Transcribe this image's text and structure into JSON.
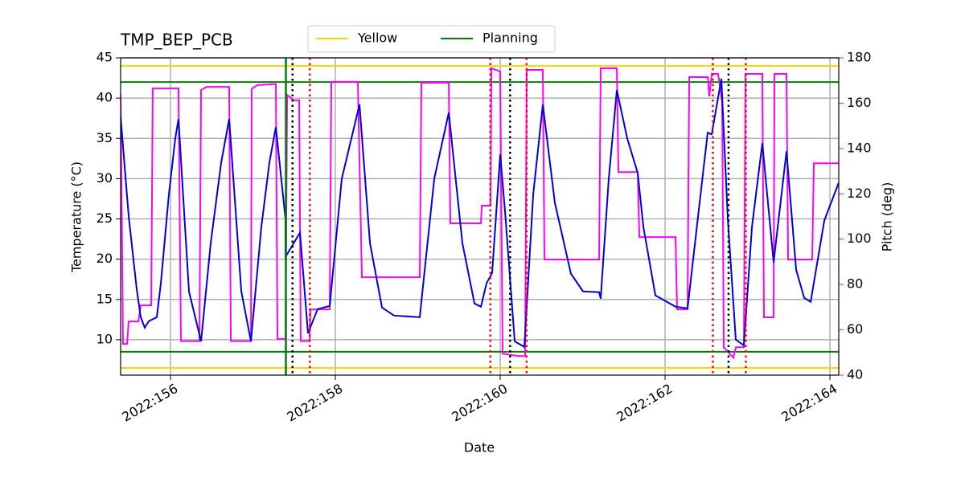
{
  "chart_data": {
    "type": "line",
    "title": "TMP_BEP_PCB",
    "xlabel": "Date",
    "ylabel": "Temperature (°C)",
    "y2label": "Pitch (deg)",
    "y2color": "magenta",
    "grid": true,
    "legend": "upper center",
    "xlim": [
      155.395,
      164.107
    ],
    "ylim": [
      5.6,
      45
    ],
    "y2lim": [
      40,
      180
    ],
    "xticks": [
      {
        "value": 156,
        "label": "2022:156"
      },
      {
        "value": 158,
        "label": "2022:158"
      },
      {
        "value": 160,
        "label": "2022:160"
      },
      {
        "value": 162,
        "label": "2022:162"
      },
      {
        "value": 164,
        "label": "2022:164"
      }
    ],
    "yticks": [
      10,
      15,
      20,
      25,
      30,
      35,
      40,
      45
    ],
    "y2ticks": [
      40,
      60,
      80,
      100,
      120,
      140,
      160,
      180
    ],
    "series": [
      {
        "color": "#0000dd",
        "x": [
          155.395,
          155.493,
          155.59,
          155.639,
          155.688,
          155.736,
          155.834,
          155.883,
          155.98,
          156.058,
          156.097,
          156.224,
          156.371,
          156.488,
          156.615,
          156.712,
          156.859,
          156.976,
          157.102,
          157.2,
          157.278,
          157.395,
          157.396,
          157.571,
          157.668,
          157.785,
          157.932,
          158.078,
          158.293,
          158.42,
          158.566,
          158.712,
          159.024,
          159.2,
          159.376,
          159.541,
          159.688,
          159.766,
          159.834,
          159.902,
          160.0,
          160.058,
          160.176,
          160.293,
          160.4,
          160.517,
          160.663,
          160.858,
          161.005,
          161.2,
          161.219,
          161.317,
          161.415,
          161.541,
          161.668,
          161.737,
          161.883,
          162.127,
          162.273,
          162.419,
          162.517,
          162.566,
          162.683,
          162.761,
          162.858,
          162.956,
          163.054,
          163.18,
          163.317,
          163.473,
          163.59,
          163.688,
          163.766,
          163.932,
          164.107
        ],
        "values": [
          37.7,
          25.3,
          16.3,
          12.8,
          11.5,
          12.3,
          12.8,
          17,
          28,
          35,
          37.4,
          16,
          9.8,
          22,
          32,
          37.4,
          16,
          9.8,
          24,
          32,
          36.4,
          25,
          20.3,
          23.3,
          10.8,
          13.8,
          14.2,
          30,
          39.2,
          22,
          14,
          13,
          12.8,
          30,
          38.2,
          22,
          14.5,
          14.1,
          17,
          18.3,
          33,
          26,
          9.8,
          9.1,
          28,
          39.2,
          27,
          18.2,
          16,
          15.9,
          15.1,
          30,
          41,
          35,
          30.7,
          24,
          15.5,
          14.1,
          13.9,
          27,
          35.7,
          35.5,
          42.4,
          25,
          10,
          9.3,
          24,
          34.4,
          19.6,
          33.4,
          18.7,
          15.2,
          14.7,
          24.8,
          29.5
        ]
      },
      {
        "color": "magenta",
        "axis": "y2",
        "x": [
          155.395,
          155.424,
          155.473,
          155.493,
          155.61,
          155.639,
          155.766,
          155.785,
          156.097,
          156.127,
          156.351,
          156.371,
          156.439,
          156.712,
          156.732,
          156.976,
          156.985,
          157.054,
          157.278,
          157.298,
          157.395,
          157.415,
          157.493,
          157.561,
          157.58,
          157.688,
          157.698,
          157.932,
          157.951,
          158.273,
          158.322,
          159.024,
          159.044,
          159.376,
          159.395,
          159.766,
          159.776,
          159.883,
          159.893,
          160.0,
          160.029,
          160.224,
          160.302,
          160.322,
          160.517,
          160.537,
          161.2,
          161.219,
          161.415,
          161.434,
          161.668,
          161.688,
          162.127,
          162.146,
          162.273,
          162.293,
          162.517,
          162.537,
          162.566,
          162.644,
          162.693,
          162.712,
          162.829,
          162.859,
          162.956,
          162.976,
          163.18,
          163.2,
          163.317,
          163.327,
          163.473,
          163.493,
          163.785,
          163.805,
          164.107
        ],
        "values": [
          163.7,
          53.8,
          53.8,
          63.7,
          63.7,
          70.8,
          70.8,
          166.5,
          166.5,
          55,
          55,
          165.8,
          167.2,
          167.2,
          55,
          55,
          166.3,
          168,
          168.4,
          56,
          56,
          163.7,
          161.3,
          161.3,
          55,
          55,
          69,
          69,
          169.4,
          169.4,
          83.2,
          83.2,
          169,
          169,
          107,
          107,
          114.8,
          114.8,
          175.4,
          174,
          49.5,
          48.4,
          48.4,
          174.7,
          174.7,
          91,
          91,
          175.4,
          175.4,
          129.6,
          129.6,
          100.9,
          100.9,
          69,
          69,
          171.5,
          171.5,
          163,
          172.9,
          172.9,
          160,
          52.3,
          47.7,
          52.3,
          52.3,
          172.9,
          172.9,
          65.5,
          65.5,
          172.9,
          172.9,
          91,
          91,
          133.5,
          133.5
        ]
      }
    ],
    "hlines": [
      {
        "name": "Yellow",
        "color": "gold",
        "values": [
          44,
          6.5
        ]
      },
      {
        "name": "Planning",
        "color": "green",
        "values": [
          42,
          8.5
        ]
      }
    ],
    "vlines": [
      {
        "color": "green",
        "style": "solid",
        "x": [
          157.4
        ]
      },
      {
        "color": "black",
        "style": "dotted",
        "x": [
          157.48,
          160.12,
          162.77
        ]
      },
      {
        "color": "red",
        "style": "dotted",
        "x": [
          157.69,
          159.88,
          160.32,
          162.58,
          162.98
        ]
      }
    ]
  }
}
